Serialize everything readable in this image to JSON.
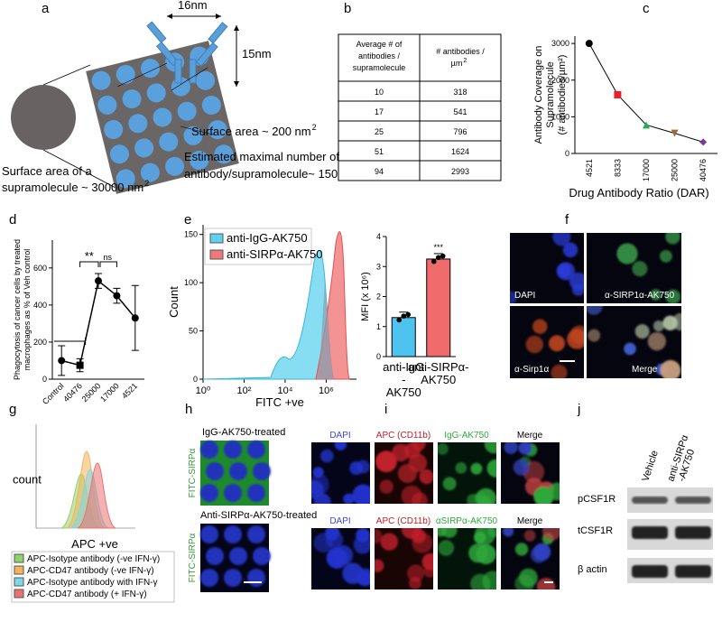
{
  "panel_labels": [
    "a",
    "b",
    "c",
    "d",
    "e",
    "f",
    "g",
    "h",
    "i",
    "j"
  ],
  "a": {
    "width_label": "16nm",
    "height_label": "15nm",
    "surface_area": "Surface area ~ 200 nm",
    "surface_area_sup": "2",
    "max_number": [
      "Estimated maximal number of",
      "antibody/supramolecule~ 150"
    ],
    "supra_area": [
      "Surface area of a",
      "supramolecule ~ 30000 nm"
    ],
    "supra_area_sup": "2"
  },
  "b": {
    "header_col1": [
      "Average # of",
      "antibodies /",
      "supramolecule"
    ],
    "header_col2": [
      "# antibodies /",
      "µm"
    ],
    "header_col2_sup": "2",
    "rows": [
      [
        10,
        318
      ],
      [
        17,
        541
      ],
      [
        25,
        796
      ],
      [
        51,
        1624
      ],
      [
        94,
        2993
      ]
    ]
  },
  "chart_data": [
    {
      "type": "line",
      "y_label": [
        "Antibody Coverage on",
        "Supramolecule",
        "(# antibodies/µm²)"
      ],
      "x_label": "Drug Antibody Ratio (DAR)",
      "categories": [
        "4521",
        "8333",
        "17000",
        "25000",
        "40476"
      ],
      "values": [
        3000,
        1600,
        780,
        550,
        310
      ],
      "colors": [
        "#000000",
        "#e8202a",
        "#21b24b",
        "#9c6b3a",
        "#7a3a9a"
      ],
      "markers": [
        "circle",
        "square",
        "triangle",
        "triangle-down",
        "diamond"
      ],
      "ylim": [
        0,
        3200
      ],
      "yticks": [
        0,
        1000,
        2000,
        3000
      ]
    },
    {
      "type": "errorline",
      "y_label": [
        "Phagocytosis of cancer cells by treated",
        "macrophages as % of Veh control"
      ],
      "categories": [
        "Control",
        "40476",
        "25000",
        "17000",
        "4521"
      ],
      "values": [
        100,
        75,
        530,
        450,
        330
      ],
      "errors": [
        80,
        35,
        40,
        40,
        175
      ],
      "annotations": [
        "**",
        "ns"
      ],
      "ylim": [
        0,
        750
      ],
      "yticks": [
        0,
        200,
        400,
        600
      ],
      "color": "#000000"
    },
    {
      "type": "density",
      "y_label": "Count",
      "x_label": "FITC +ve",
      "log_x": true,
      "series": [
        {
          "name": "anti-IgG-AK750",
          "color": "#5fd3ee"
        },
        {
          "name": "anti-SIRPα-AK750",
          "color": "#f07878"
        }
      ],
      "xlim": [
        1,
        30000000
      ],
      "xticks": [
        {
          "value": 1,
          "label": "10⁰"
        },
        {
          "value": 100,
          "label": "10²"
        },
        {
          "value": 10000,
          "label": "10⁴"
        },
        {
          "value": 1000000,
          "label": "10⁶"
        }
      ],
      "ylim": [
        0,
        160
      ],
      "yticks": [
        0,
        50,
        100,
        150
      ]
    },
    {
      "type": "bar",
      "y_label": "MFI (x 10⁶)",
      "categories": [
        [
          "anti-IgG",
          "-",
          "AK750"
        ],
        [
          "anti-SIRPα-",
          "AK750"
        ]
      ],
      "values": [
        1.3,
        3.25
      ],
      "colors": [
        "#4fc3f0",
        "#f06b6b"
      ],
      "annotations": [
        "",
        "***"
      ],
      "ylim": [
        0,
        4
      ],
      "yticks": [
        0,
        1,
        2,
        3,
        4
      ]
    },
    {
      "type": "density",
      "y_label": "count",
      "x_label": "APC +ve",
      "series": [
        {
          "name": "APC-Isotype antibody (-ve IFN-γ)",
          "color": "#8fd36b"
        },
        {
          "name": "APC-CD47 antibody (-ve IFN-γ)",
          "color": "#f5b25a"
        },
        {
          "name": "APC-Isotype antibody with IFN-γ",
          "color": "#7fd6e8"
        },
        {
          "name": "APC-CD47 antibody (+ IFN-γ)",
          "color": "#e87373"
        }
      ]
    }
  ],
  "f": {
    "labels": [
      "DAPI",
      "α-SIRP1α-AK750",
      "α-Sirp1α",
      "Merge"
    ]
  },
  "h": {
    "titles": [
      "IgG-AK750-treated",
      "Anti-SIRPα-AK750-treated"
    ],
    "side_labels": [
      "FITC-SIRPα",
      "FITC-SIRPα"
    ]
  },
  "i": {
    "row1": [
      "DAPI",
      "APC (CD11b)",
      "IgG-AK750",
      "Merge"
    ],
    "row2": [
      "DAPI",
      "APC (CD11b)",
      "αSIRPα-AK750",
      "Merge"
    ]
  },
  "j": {
    "columns": [
      [
        "Vehicle"
      ],
      [
        "anti-SIRPα",
        "-AK750"
      ]
    ],
    "rows": [
      "pCSF1R",
      "tCSF1R",
      "β actin"
    ]
  }
}
